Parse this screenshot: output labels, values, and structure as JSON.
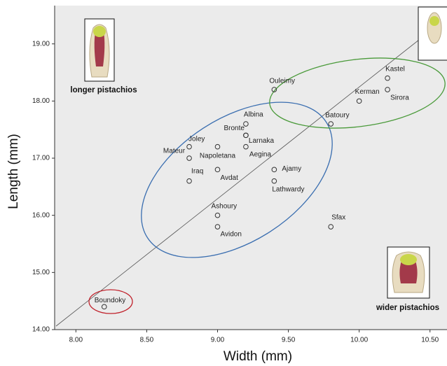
{
  "chart_data": {
    "type": "scatter",
    "x_label": "Width (mm)",
    "y_label": "Length (mm)",
    "labels": [
      "Boundoky",
      "Ouleimy",
      "Kastel",
      "Sirora",
      "Kerman",
      "Batoury",
      "Albina",
      "Bronte",
      "Larnaka",
      "Aegina",
      "Joley",
      "Mateur",
      "Napoletana",
      "Iraq",
      "Avdat",
      "Ajamy",
      "Lathwardy",
      "Ashoury",
      "Avidon",
      "Sfax"
    ],
    "x": [
      8.2,
      9.4,
      10.2,
      10.2,
      10.0,
      9.8,
      9.2,
      9.2,
      9.2,
      9.2,
      8.8,
      8.8,
      9.0,
      8.8,
      9.0,
      9.4,
      9.4,
      9.0,
      9.0,
      9.8
    ],
    "values": [
      14.4,
      18.2,
      18.4,
      18.2,
      18.0,
      17.6,
      17.6,
      17.4,
      17.4,
      17.2,
      17.2,
      17.0,
      17.2,
      16.6,
      16.8,
      16.8,
      16.6,
      16.0,
      15.8,
      15.8
    ],
    "color": "#333333",
    "xlim": [
      7.85,
      10.62
    ],
    "ylim": [
      14,
      19.67
    ],
    "xticks": [
      {
        "value": 8,
        "label": "8.00"
      },
      {
        "value": 8.5,
        "label": "8.50"
      },
      {
        "value": 9,
        "label": "9.00"
      },
      {
        "value": 9.5,
        "label": "9.50"
      },
      {
        "value": 10,
        "label": "10.00"
      },
      {
        "value": 10.5,
        "label": "10.50"
      }
    ],
    "yticks": [
      {
        "value": 14,
        "label": "14.00"
      },
      {
        "value": 15,
        "label": "15.00"
      },
      {
        "value": 16,
        "label": "16.00"
      },
      {
        "value": 17,
        "label": "17.00"
      },
      {
        "value": 18,
        "label": "18.00"
      },
      {
        "value": 19,
        "label": "19.00"
      }
    ],
    "annotations": [
      "longer pistachios",
      "wider pistachios"
    ]
  }
}
